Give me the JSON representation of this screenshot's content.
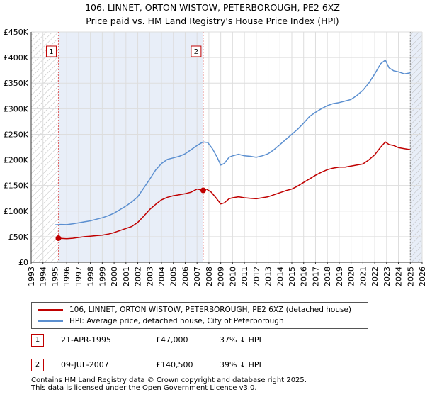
{
  "header": {
    "title_line1": "106, LINNET, ORTON WISTOW, PETERBOROUGH, PE2 6XZ",
    "title_line2": "Price paid vs. HM Land Registry's House Price Index (HPI)"
  },
  "chart_data": {
    "type": "line",
    "xlim": [
      1993,
      2026
    ],
    "ylim": [
      0,
      450000
    ],
    "x_ticks": [
      "1993",
      "1994",
      "1995",
      "1996",
      "1997",
      "1998",
      "1999",
      "2000",
      "2001",
      "2002",
      "2003",
      "2004",
      "2005",
      "2006",
      "2007",
      "2008",
      "2009",
      "2010",
      "2011",
      "2012",
      "2013",
      "2014",
      "2015",
      "2016",
      "2017",
      "2018",
      "2019",
      "2020",
      "2021",
      "2022",
      "2023",
      "2024",
      "2025",
      "2026"
    ],
    "y_ticks": [
      {
        "value": 0,
        "label": "£0"
      },
      {
        "value": 50000,
        "label": "£50K"
      },
      {
        "value": 100000,
        "label": "£100K"
      },
      {
        "value": 150000,
        "label": "£150K"
      },
      {
        "value": 200000,
        "label": "£200K"
      },
      {
        "value": 250000,
        "label": "£250K"
      },
      {
        "value": 300000,
        "label": "£300K"
      },
      {
        "value": 350000,
        "label": "£350K"
      },
      {
        "value": 400000,
        "label": "£400K"
      },
      {
        "value": 450000,
        "label": "£450K"
      }
    ],
    "grid": true,
    "shaded_periods": [
      {
        "from": 1995.3,
        "to": 2007.52
      },
      {
        "from": 2025.0,
        "to": 2026.0
      }
    ],
    "hatched_periods": [
      {
        "from": 1993,
        "to": 1995.3
      },
      {
        "from": 2025.0,
        "to": 2026.0
      }
    ],
    "series": [
      {
        "name": "106, LINNET, ORTON WISTOW, PETERBOROUGH, PE2 6XZ (detached house)",
        "color": "#c00000",
        "x": [
          1995.3,
          1995.6,
          1996.0,
          1996.5,
          1997.0,
          1997.5,
          1998.0,
          1998.5,
          1999.0,
          1999.5,
          2000.0,
          2000.5,
          2001.0,
          2001.5,
          2002.0,
          2002.5,
          2003.0,
          2003.5,
          2004.0,
          2004.5,
          2005.0,
          2005.5,
          2006.0,
          2006.5,
          2007.0,
          2007.52,
          2007.8,
          2008.2,
          2008.6,
          2009.0,
          2009.3,
          2009.7,
          2010.0,
          2010.5,
          2011.0,
          2011.5,
          2012.0,
          2012.5,
          2013.0,
          2013.5,
          2014.0,
          2014.5,
          2015.0,
          2015.5,
          2016.0,
          2016.5,
          2017.0,
          2017.5,
          2018.0,
          2018.5,
          2019.0,
          2019.5,
          2020.0,
          2020.5,
          2021.0,
          2021.5,
          2022.0,
          2022.5,
          2022.9,
          2023.2,
          2023.6,
          2024.0,
          2024.5,
          2025.0
        ],
        "values": [
          47000,
          46500,
          46000,
          47000,
          48500,
          50000,
          51000,
          52000,
          53000,
          55000,
          58000,
          62000,
          66000,
          70000,
          78000,
          90000,
          103000,
          113000,
          122000,
          127000,
          130000,
          132000,
          134000,
          137000,
          143000,
          140500,
          143000,
          137000,
          126000,
          114000,
          116000,
          124000,
          126000,
          128000,
          126000,
          125000,
          124000,
          126000,
          128000,
          132000,
          136000,
          140000,
          143000,
          149000,
          156000,
          163000,
          170000,
          176000,
          181000,
          184000,
          186000,
          186000,
          188000,
          190000,
          192000,
          200000,
          210000,
          225000,
          235000,
          230000,
          228000,
          224000,
          222000,
          220000
        ]
      },
      {
        "name": "HPI: Average price, detached house, City of Peterborough",
        "color": "#5b8fd0",
        "x": [
          1995.0,
          1995.5,
          1996.0,
          1996.5,
          1997.0,
          1997.5,
          1998.0,
          1998.5,
          1999.0,
          1999.5,
          2000.0,
          2000.5,
          2001.0,
          2001.5,
          2002.0,
          2002.5,
          2003.0,
          2003.5,
          2004.0,
          2004.5,
          2005.0,
          2005.5,
          2006.0,
          2006.5,
          2007.0,
          2007.5,
          2007.9,
          2008.3,
          2008.7,
          2009.0,
          2009.3,
          2009.7,
          2010.0,
          2010.5,
          2011.0,
          2011.5,
          2012.0,
          2012.5,
          2013.0,
          2013.5,
          2014.0,
          2014.5,
          2015.0,
          2015.5,
          2016.0,
          2016.5,
          2017.0,
          2017.5,
          2018.0,
          2018.5,
          2019.0,
          2019.5,
          2020.0,
          2020.5,
          2021.0,
          2021.5,
          2022.0,
          2022.5,
          2022.9,
          2023.2,
          2023.6,
          2024.0,
          2024.5,
          2025.0
        ],
        "values": [
          73000,
          74000,
          73500,
          75000,
          77000,
          79000,
          81000,
          84000,
          87000,
          91000,
          96000,
          103000,
          110000,
          118000,
          128000,
          145000,
          162000,
          180000,
          193000,
          201000,
          204000,
          207000,
          212000,
          220000,
          228000,
          235000,
          234000,
          222000,
          205000,
          190000,
          193000,
          205000,
          208000,
          211000,
          208000,
          207000,
          205000,
          208000,
          212000,
          220000,
          230000,
          240000,
          250000,
          260000,
          272000,
          285000,
          293000,
          300000,
          306000,
          310000,
          312000,
          315000,
          318000,
          326000,
          336000,
          350000,
          368000,
          388000,
          395000,
          380000,
          374000,
          372000,
          368000,
          370000
        ]
      }
    ],
    "sales": [
      {
        "label": "1",
        "x": 1995.3,
        "value": 47000
      },
      {
        "label": "2",
        "x": 2007.52,
        "value": 140500
      }
    ]
  },
  "legend": {
    "property_label": "106, LINNET, ORTON WISTOW, PETERBOROUGH, PE2 6XZ (detached house)",
    "property_color": "#c00000",
    "hpi_label": "HPI: Average price, detached house, City of Peterborough",
    "hpi_color": "#5b8fd0"
  },
  "sales_table": [
    {
      "num": "1",
      "date": "21-APR-1995",
      "price": "£47,000",
      "hpi": "37% ↓ HPI"
    },
    {
      "num": "2",
      "date": "09-JUL-2007",
      "price": "£140,500",
      "hpi": "39% ↓ HPI"
    }
  ],
  "footer": {
    "line1": "Contains HM Land Registry data © Crown copyright and database right 2025.",
    "line2": "This data is licensed under the Open Government Licence v3.0."
  }
}
